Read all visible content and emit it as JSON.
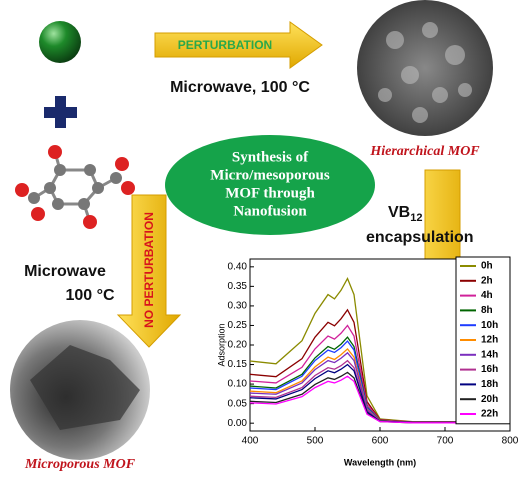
{
  "labels": {
    "perturbation": "PERTURBATION",
    "microwave_top": "Microwave, 100 °C",
    "hierarchical": "Hierarchical MOF",
    "synthesis": [
      "Synthesis of",
      "Micro/mesoporous",
      "MOF through",
      "Nanofusion"
    ],
    "no_perturbation": "NO PERTURBATION",
    "microwave_left": [
      "Microwave",
      "100 °C"
    ],
    "microporous": "Microporous MOF",
    "vb": "VB",
    "vb_subscript": "12",
    "encapsulation": "encapsulation"
  },
  "chart_data": {
    "type": "line",
    "xlabel": "Wavelength (nm)",
    "ylabel": "Adsorption",
    "x": [
      400,
      440,
      480,
      500,
      520,
      530,
      540,
      550,
      560,
      570,
      580,
      600,
      650,
      700,
      800
    ],
    "xlim": [
      400,
      800
    ],
    "xticks": [
      400,
      500,
      600,
      700,
      800
    ],
    "ylim": [
      -0.02,
      0.42
    ],
    "yticks": [
      {
        "value": 0,
        "label": "0.00"
      },
      0.05,
      {
        "value": 0.1,
        "label": "0.10"
      },
      0.15,
      {
        "value": 0.2,
        "label": "0.20"
      },
      0.25,
      {
        "value": 0.3,
        "label": "0.30"
      },
      0.35,
      {
        "value": 0.4,
        "label": "0.40"
      }
    ],
    "legend": "upper right",
    "series": [
      {
        "name": "0h",
        "color": "#8b8b00",
        "values": [
          0.159,
          0.152,
          0.211,
          0.281,
          0.329,
          0.318,
          0.34,
          0.37,
          0.329,
          0.2,
          0.07,
          0.011,
          0.004,
          0.004,
          0.004
        ]
      },
      {
        "name": "2h",
        "color": "#8b0000",
        "values": [
          0.125,
          0.119,
          0.165,
          0.22,
          0.258,
          0.249,
          0.267,
          0.29,
          0.258,
          0.157,
          0.055,
          0.009,
          0.003,
          0.003,
          0.003
        ]
      },
      {
        "name": "4h",
        "color": "#d0219a",
        "values": [
          0.108,
          0.103,
          0.143,
          0.19,
          0.223,
          0.215,
          0.23,
          0.25,
          0.223,
          0.135,
          0.048,
          0.008,
          0.003,
          0.003,
          0.003
        ]
      },
      {
        "name": "8h",
        "color": "#006400",
        "values": [
          0.095,
          0.09,
          0.125,
          0.167,
          0.196,
          0.189,
          0.202,
          0.22,
          0.196,
          0.119,
          0.042,
          0.007,
          0.002,
          0.002,
          0.002
        ]
      },
      {
        "name": "10h",
        "color": "#1e3cff",
        "values": [
          0.09,
          0.086,
          0.12,
          0.16,
          0.187,
          0.181,
          0.193,
          0.21,
          0.187,
          0.113,
          0.04,
          0.006,
          0.002,
          0.002,
          0.002
        ]
      },
      {
        "name": "12h",
        "color": "#ff8c00",
        "values": [
          0.082,
          0.078,
          0.108,
          0.144,
          0.169,
          0.163,
          0.175,
          0.19,
          0.169,
          0.103,
          0.036,
          0.006,
          0.002,
          0.002,
          0.002
        ]
      },
      {
        "name": "14h",
        "color": "#7b2fbe",
        "values": [
          0.077,
          0.074,
          0.103,
          0.137,
          0.16,
          0.155,
          0.166,
          0.18,
          0.16,
          0.097,
          0.034,
          0.005,
          0.002,
          0.002,
          0.002
        ]
      },
      {
        "name": "16h",
        "color": "#b03090",
        "values": [
          0.069,
          0.066,
          0.091,
          0.122,
          0.142,
          0.138,
          0.147,
          0.16,
          0.142,
          0.086,
          0.03,
          0.005,
          0.002,
          0.002,
          0.002
        ]
      },
      {
        "name": "18h",
        "color": "#000080",
        "values": [
          0.065,
          0.062,
          0.086,
          0.114,
          0.134,
          0.129,
          0.138,
          0.15,
          0.134,
          0.081,
          0.029,
          0.005,
          0.002,
          0.002,
          0.002
        ]
      },
      {
        "name": "20h",
        "color": "#202020",
        "values": [
          0.056,
          0.053,
          0.074,
          0.099,
          0.116,
          0.112,
          0.12,
          0.13,
          0.116,
          0.07,
          0.025,
          0.004,
          0.001,
          0.001,
          0.001
        ]
      },
      {
        "name": "22h",
        "color": "#ff00ff",
        "values": [
          0.052,
          0.049,
          0.068,
          0.091,
          0.107,
          0.103,
          0.11,
          0.12,
          0.107,
          0.065,
          0.023,
          0.004,
          0.001,
          0.001,
          0.001
        ]
      }
    ]
  }
}
